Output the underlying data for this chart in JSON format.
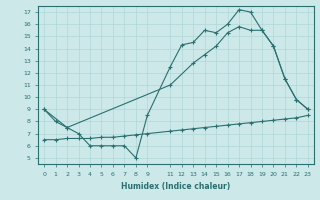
{
  "xlabel": "Humidex (Indice chaleur)",
  "bg_color": "#cce8e8",
  "line_color": "#2a7070",
  "grid_color": "#b0d8d8",
  "xlim": [
    -0.5,
    23.5
  ],
  "ylim": [
    4.5,
    17.5
  ],
  "yticks": [
    5,
    6,
    7,
    8,
    9,
    10,
    11,
    12,
    13,
    14,
    15,
    16,
    17
  ],
  "xticks": [
    0,
    1,
    2,
    3,
    4,
    5,
    6,
    7,
    8,
    9,
    11,
    12,
    13,
    14,
    15,
    16,
    17,
    18,
    19,
    20,
    21,
    22,
    23
  ],
  "series": [
    {
      "x": [
        0,
        1,
        2,
        3,
        4,
        5,
        6,
        7,
        8,
        9,
        11,
        12,
        13,
        14,
        15,
        16,
        17,
        18,
        19,
        20,
        21,
        22,
        23
      ],
      "y": [
        9,
        8,
        7.5,
        7,
        6,
        6,
        6,
        6,
        5,
        8.5,
        12.5,
        14.3,
        14.5,
        15.5,
        15.3,
        16.0,
        17.2,
        17.0,
        15.5,
        14.2,
        11.5,
        9.8,
        9.0
      ]
    },
    {
      "x": [
        0,
        2,
        11,
        13,
        14,
        15,
        16,
        17,
        18,
        19,
        20,
        21,
        22,
        23
      ],
      "y": [
        9.0,
        7.5,
        11.0,
        12.8,
        13.5,
        14.2,
        15.3,
        15.8,
        15.5,
        15.5,
        14.2,
        11.5,
        9.8,
        9.0
      ]
    },
    {
      "x": [
        0,
        1,
        2,
        3,
        4,
        5,
        6,
        7,
        8,
        9,
        11,
        12,
        13,
        14,
        15,
        16,
        17,
        18,
        19,
        20,
        21,
        22,
        23
      ],
      "y": [
        6.5,
        6.5,
        6.6,
        6.6,
        6.6,
        6.7,
        6.7,
        6.8,
        6.9,
        7.0,
        7.2,
        7.3,
        7.4,
        7.5,
        7.6,
        7.7,
        7.8,
        7.9,
        8.0,
        8.1,
        8.2,
        8.3,
        8.5
      ]
    }
  ]
}
